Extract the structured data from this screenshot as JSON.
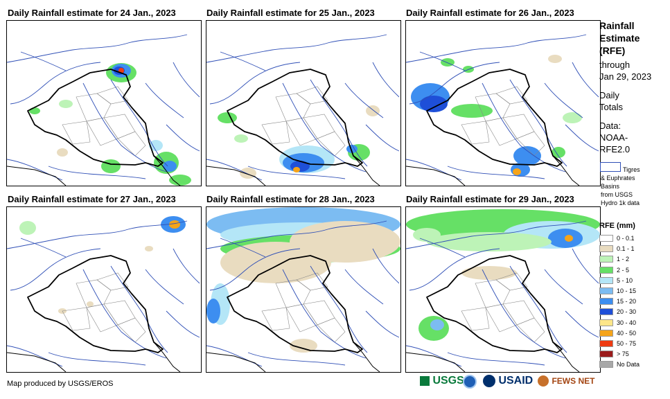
{
  "panels": [
    {
      "title": "Daily Rainfall estimate for 24 Jan., 2023"
    },
    {
      "title": "Daily Rainfall estimate for 25 Jan., 2023"
    },
    {
      "title": "Daily Rainfall estimate for 26 Jan., 2023"
    },
    {
      "title": "Daily Rainfall estimate for 27 Jan., 2023"
    },
    {
      "title": "Daily Rainfall estimate for 28 Jan., 2023"
    },
    {
      "title": "Daily Rainfall estimate for 29 Jan., 2023"
    }
  ],
  "sidebar": {
    "title_lines": [
      "Rainfall",
      "Estimate",
      "(RFE)"
    ],
    "through_label": "through",
    "through_date": "Jan 29, 2023",
    "totals_lines": [
      "Daily",
      "Totals"
    ],
    "data_lines": [
      "Data:",
      "NOAA-",
      "RFE2.0"
    ],
    "basin_label_lines": [
      "Tigres",
      "& Euphrates",
      "Basins",
      "from USGS",
      "Hydro 1k data"
    ]
  },
  "legend": {
    "title": "RFE (mm)",
    "classes": [
      {
        "label": "0 - 0.1",
        "color": "#ffffff"
      },
      {
        "label": "0.1 - 1",
        "color": "#e9dcc0"
      },
      {
        "label": "1 - 2",
        "color": "#bdf3b7"
      },
      {
        "label": "2 - 5",
        "color": "#66e066"
      },
      {
        "label": "5 - 10",
        "color": "#b4e6f7"
      },
      {
        "label": "10 - 15",
        "color": "#7cbcf2"
      },
      {
        "label": "15 - 20",
        "color": "#3d8ef0"
      },
      {
        "label": "20 - 30",
        "color": "#1e4fd8"
      },
      {
        "label": "30 - 40",
        "color": "#fde68a"
      },
      {
        "label": "40 - 50",
        "color": "#f5a41a"
      },
      {
        "label": "50 - 75",
        "color": "#ee3b12"
      },
      {
        "label": "> 75",
        "color": "#9b1c1c"
      },
      {
        "label": "No Data",
        "color": "#a8a8a8"
      }
    ]
  },
  "footer": {
    "credit": "Map produced by USGS/EROS",
    "logos": [
      "USGS",
      "NOAA",
      "USAID",
      "FEWS NET"
    ]
  },
  "colors": {
    "border": "#000000",
    "river": "#2f4fb6",
    "province": "#888888"
  }
}
